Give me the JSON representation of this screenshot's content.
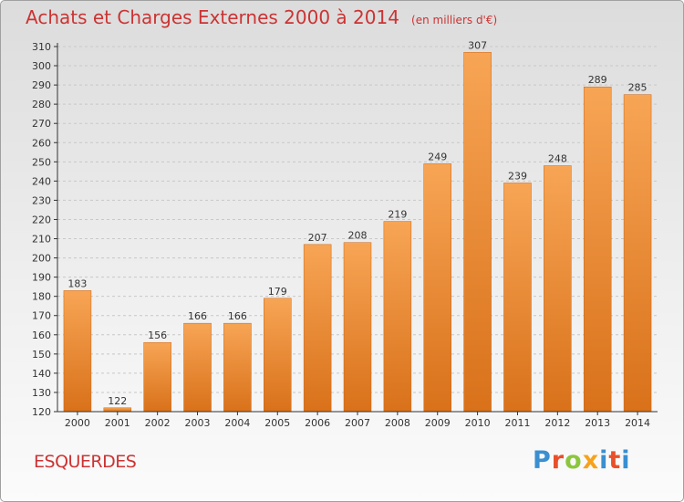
{
  "header": {
    "title": "Achats et Charges Externes 2000 à 2014",
    "unit": "(en milliers d'€)"
  },
  "footer": {
    "commune": "ESQUERDES",
    "logo_text": "Proxiti"
  },
  "colors": {
    "title": "#cc3333",
    "bar_light": "#f7a555",
    "bar_dark": "#d9711a",
    "grid": "#c8c8c8",
    "axis": "#333333",
    "logo_letters": [
      "#3a8fd0",
      "#e94f2a",
      "#8cc63f",
      "#f7a21b",
      "#3a8fd0",
      "#e94f2a"
    ]
  },
  "chart_data": {
    "type": "bar",
    "title": "Achats et Charges Externes 2000 à 2014",
    "subtitle": "(en milliers d'€)",
    "xlabel": "",
    "ylabel": "",
    "categories": [
      "2000",
      "2001",
      "2002",
      "2003",
      "2004",
      "2005",
      "2006",
      "2007",
      "2008",
      "2009",
      "2010",
      "2011",
      "2012",
      "2013",
      "2014"
    ],
    "values": [
      183,
      122,
      156,
      166,
      166,
      179,
      207,
      208,
      219,
      249,
      307,
      239,
      248,
      289,
      285
    ],
    "ylim": [
      120,
      310
    ],
    "yticks": [
      120,
      130,
      140,
      150,
      160,
      170,
      180,
      190,
      200,
      210,
      220,
      230,
      240,
      250,
      260,
      270,
      280,
      290,
      300,
      310
    ],
    "grid": "horizontal",
    "legend": "none"
  }
}
